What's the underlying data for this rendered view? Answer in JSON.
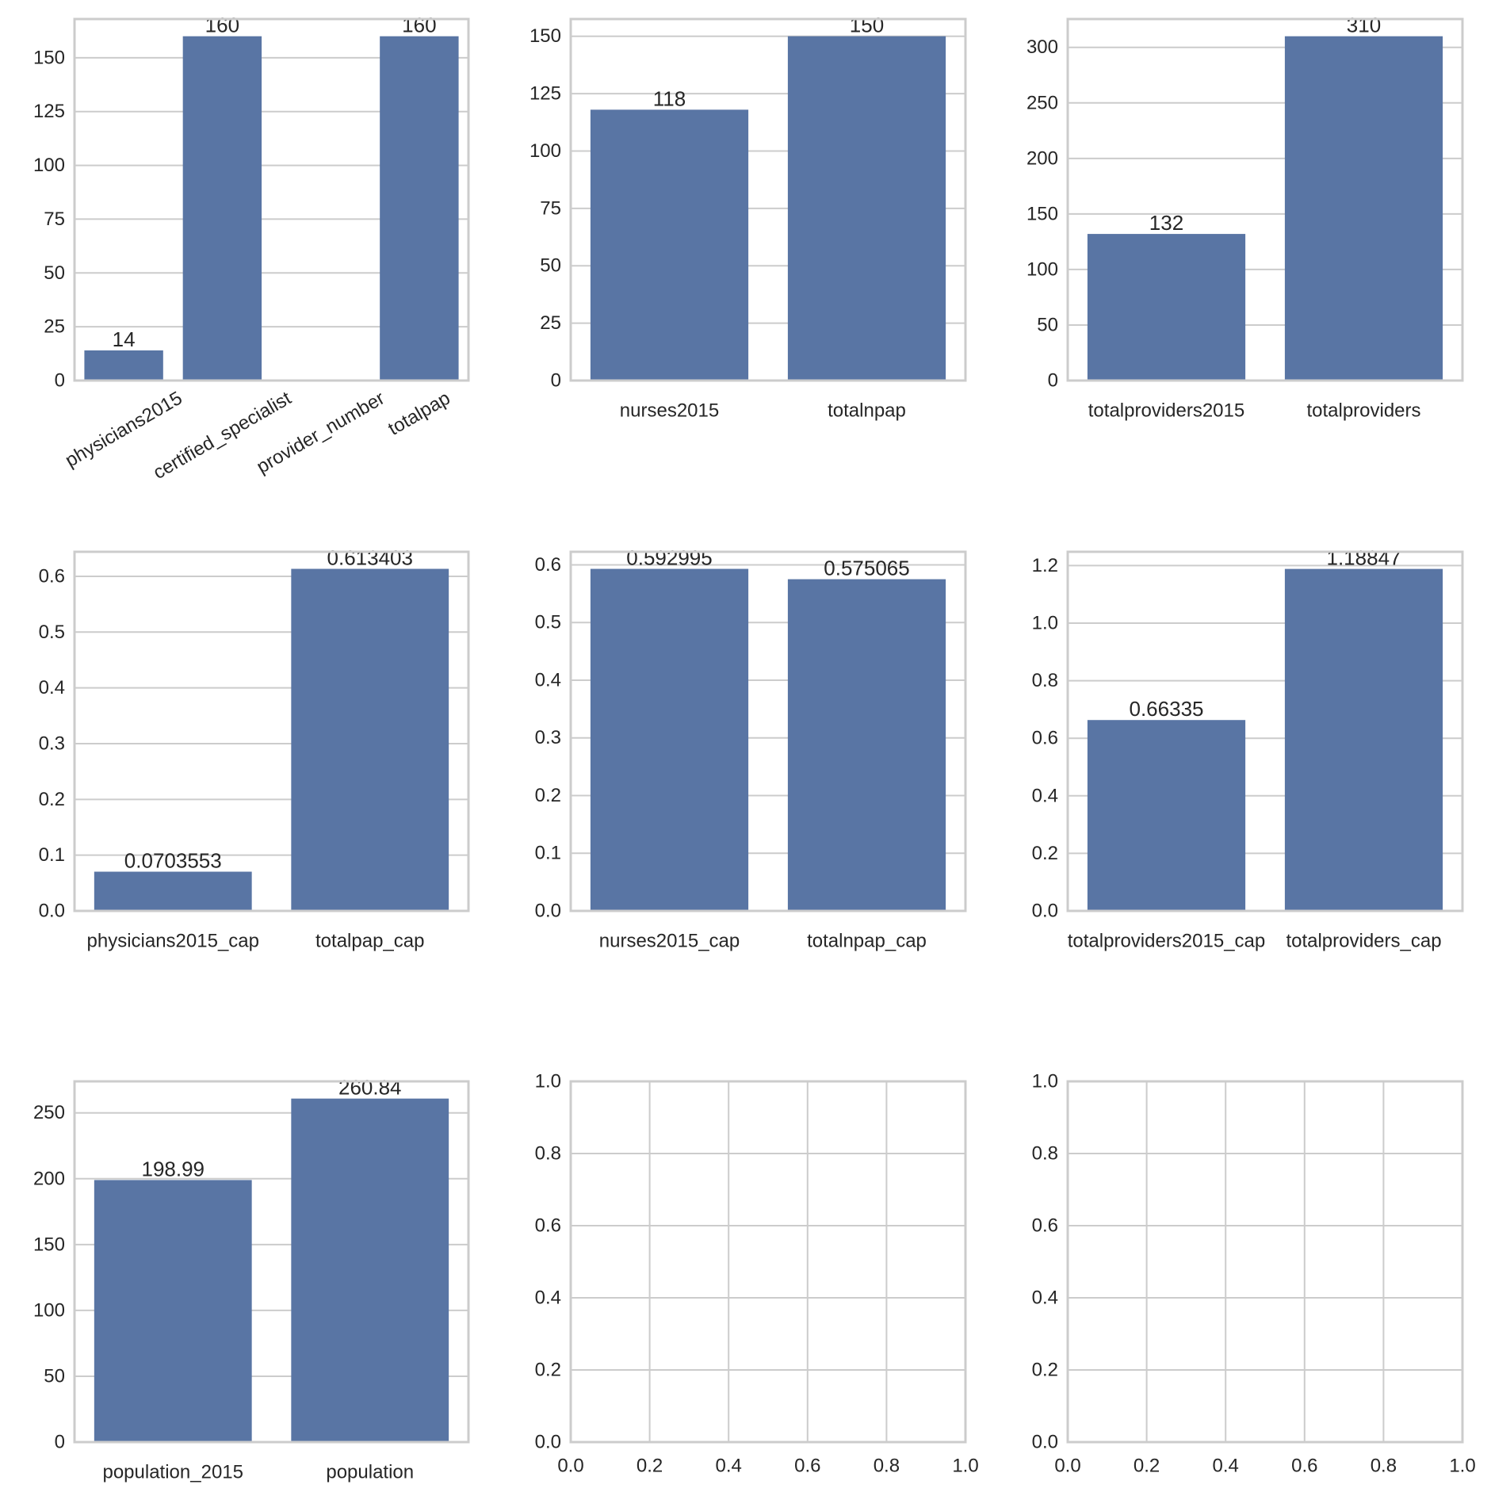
{
  "colors": {
    "bar": "#5975a4",
    "grid": "#cccccc",
    "text": "#262626"
  },
  "chart_data": [
    {
      "type": "bar",
      "categories": [
        "physicians2015",
        "certified_specialist",
        "provider_number",
        "totalpap"
      ],
      "values": [
        14,
        160,
        null,
        160
      ],
      "labels": [
        "14",
        "160",
        "",
        "160"
      ],
      "ylim": [
        0,
        168
      ],
      "yticks": [
        "0",
        "25",
        "50",
        "75",
        "100",
        "125",
        "150"
      ],
      "ytick_values": [
        0,
        25,
        50,
        75,
        100,
        125,
        150
      ],
      "xtick_rotation": 30,
      "grid": true
    },
    {
      "type": "bar",
      "categories": [
        "nurses2015",
        "totalnpap"
      ],
      "values": [
        118,
        150
      ],
      "labels": [
        "118",
        "150"
      ],
      "ylim": [
        0,
        157.5
      ],
      "yticks": [
        "0",
        "25",
        "50",
        "75",
        "100",
        "125",
        "150"
      ],
      "ytick_values": [
        0,
        25,
        50,
        75,
        100,
        125,
        150
      ],
      "grid": true
    },
    {
      "type": "bar",
      "categories": [
        "totalproviders2015",
        "totalproviders"
      ],
      "values": [
        132,
        310
      ],
      "labels": [
        "132",
        "310"
      ],
      "ylim": [
        0,
        325.5
      ],
      "yticks": [
        "0",
        "50",
        "100",
        "150",
        "200",
        "250",
        "300"
      ],
      "ytick_values": [
        0,
        50,
        100,
        150,
        200,
        250,
        300
      ],
      "grid": true
    },
    {
      "type": "bar",
      "categories": [
        "physicians2015_cap",
        "totalpap_cap"
      ],
      "values": [
        0.0703553,
        0.613403
      ],
      "labels": [
        "0.0703553",
        "0.613403"
      ],
      "ylim": [
        0,
        0.644
      ],
      "yticks": [
        "0.0",
        "0.1",
        "0.2",
        "0.3",
        "0.4",
        "0.5",
        "0.6"
      ],
      "ytick_values": [
        0,
        0.1,
        0.2,
        0.3,
        0.4,
        0.5,
        0.6
      ],
      "grid": true
    },
    {
      "type": "bar",
      "categories": [
        "nurses2015_cap",
        "totalnpap_cap"
      ],
      "values": [
        0.592995,
        0.575065
      ],
      "labels": [
        "0.592995",
        "0.575065"
      ],
      "ylim": [
        0,
        0.6226
      ],
      "yticks": [
        "0.0",
        "0.1",
        "0.2",
        "0.3",
        "0.4",
        "0.5",
        "0.6"
      ],
      "ytick_values": [
        0,
        0.1,
        0.2,
        0.3,
        0.4,
        0.5,
        0.6
      ],
      "grid": true
    },
    {
      "type": "bar",
      "categories": [
        "totalproviders2015_cap",
        "totalproviders_cap"
      ],
      "values": [
        0.66335,
        1.18847
      ],
      "labels": [
        "0.66335",
        "1.18847"
      ],
      "ylim": [
        0,
        1.248
      ],
      "yticks": [
        "0.0",
        "0.2",
        "0.4",
        "0.6",
        "0.8",
        "1.0",
        "1.2"
      ],
      "ytick_values": [
        0,
        0.2,
        0.4,
        0.6,
        0.8,
        1.0,
        1.2
      ],
      "grid": true
    },
    {
      "type": "bar",
      "categories": [
        "population_2015",
        "population"
      ],
      "values": [
        198.99,
        260.84
      ],
      "labels": [
        "198.99",
        "260.84"
      ],
      "ylim": [
        0,
        273.9
      ],
      "yticks": [
        "0",
        "50",
        "100",
        "150",
        "200",
        "250"
      ],
      "ytick_values": [
        0,
        50,
        100,
        150,
        200,
        250
      ],
      "grid": true
    },
    {
      "type": "empty",
      "xlim": [
        0,
        1
      ],
      "ylim": [
        0,
        1
      ],
      "xticks": [
        "0.0",
        "0.2",
        "0.4",
        "0.6",
        "0.8",
        "1.0"
      ],
      "xtick_values": [
        0,
        0.2,
        0.4,
        0.6,
        0.8,
        1.0
      ],
      "yticks": [
        "0.0",
        "0.2",
        "0.4",
        "0.6",
        "0.8",
        "1.0"
      ],
      "ytick_values": [
        0,
        0.2,
        0.4,
        0.6,
        0.8,
        1.0
      ],
      "grid": true
    },
    {
      "type": "empty",
      "xlim": [
        0,
        1
      ],
      "ylim": [
        0,
        1
      ],
      "xticks": [
        "0.0",
        "0.2",
        "0.4",
        "0.6",
        "0.8",
        "1.0"
      ],
      "xtick_values": [
        0,
        0.2,
        0.4,
        0.6,
        0.8,
        1.0
      ],
      "yticks": [
        "0.0",
        "0.2",
        "0.4",
        "0.6",
        "0.8",
        "1.0"
      ],
      "ytick_values": [
        0,
        0.2,
        0.4,
        0.6,
        0.8,
        1.0
      ],
      "grid": true
    }
  ]
}
